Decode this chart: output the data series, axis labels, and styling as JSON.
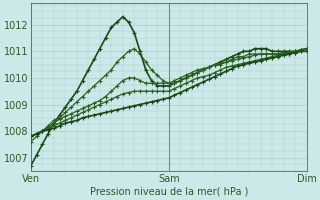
{
  "title": "Pression niveau de la mer( hPa )",
  "bg_color": "#cce8e8",
  "grid_color": "#aacccc",
  "text_color": "#2d5a27",
  "ylim": [
    1006.5,
    1012.8
  ],
  "yticks": [
    1007,
    1008,
    1009,
    1010,
    1011,
    1012
  ],
  "xtick_labels": [
    "Ven",
    "Sam",
    "Dim"
  ],
  "xtick_positions": [
    0,
    48,
    96
  ],
  "x_total": 96,
  "series": [
    {
      "x": [
        0,
        2,
        4,
        6,
        8,
        10,
        12,
        14,
        16,
        18,
        20,
        22,
        24,
        26,
        28,
        30,
        32,
        34,
        36,
        38,
        40,
        42,
        44,
        46,
        48,
        50,
        52,
        54,
        56,
        58,
        60,
        62,
        64,
        66,
        68,
        70,
        72,
        74,
        76,
        78,
        80,
        82,
        84,
        86,
        88,
        90,
        92,
        94,
        96
      ],
      "y": [
        1006.7,
        1007.1,
        1007.5,
        1007.9,
        1008.3,
        1008.6,
        1008.9,
        1009.2,
        1009.5,
        1009.9,
        1010.3,
        1010.7,
        1011.1,
        1011.5,
        1011.9,
        1012.1,
        1012.3,
        1012.1,
        1011.7,
        1011.0,
        1010.3,
        1009.9,
        1009.7,
        1009.7,
        1009.7,
        1009.8,
        1009.9,
        1010.0,
        1010.1,
        1010.2,
        1010.3,
        1010.4,
        1010.5,
        1010.6,
        1010.7,
        1010.8,
        1010.9,
        1011.0,
        1011.0,
        1011.1,
        1011.1,
        1011.1,
        1011.0,
        1011.0,
        1011.0,
        1011.0,
        1011.0,
        1011.05,
        1011.1
      ],
      "color": "#1a4a14",
      "lw": 1.2
    },
    {
      "x": [
        0,
        2,
        4,
        6,
        8,
        10,
        12,
        14,
        16,
        18,
        20,
        22,
        24,
        26,
        28,
        30,
        32,
        34,
        36,
        38,
        40,
        42,
        44,
        46,
        48,
        50,
        52,
        54,
        56,
        58,
        60,
        62,
        64,
        66,
        68,
        70,
        72,
        74,
        76,
        78,
        80,
        82,
        84,
        86,
        88,
        90,
        92,
        94,
        96
      ],
      "y": [
        1007.6,
        1007.8,
        1008.0,
        1008.2,
        1008.4,
        1008.5,
        1008.7,
        1008.9,
        1009.1,
        1009.3,
        1009.5,
        1009.7,
        1009.9,
        1010.1,
        1010.3,
        1010.6,
        1010.8,
        1011.0,
        1011.1,
        1010.9,
        1010.6,
        1010.3,
        1010.1,
        1009.9,
        1009.8,
        1009.8,
        1009.9,
        1010.0,
        1010.1,
        1010.2,
        1010.3,
        1010.4,
        1010.5,
        1010.5,
        1010.6,
        1010.7,
        1010.8,
        1010.8,
        1010.9,
        1010.9,
        1010.9,
        1010.9,
        1010.9,
        1010.9,
        1010.95,
        1010.95,
        1011.0,
        1011.05,
        1011.1
      ],
      "color": "#2a6020",
      "lw": 0.9
    },
    {
      "x": [
        0,
        2,
        4,
        6,
        8,
        10,
        12,
        14,
        16,
        18,
        20,
        22,
        24,
        26,
        28,
        30,
        32,
        34,
        36,
        38,
        40,
        42,
        44,
        46,
        48,
        50,
        52,
        54,
        56,
        58,
        60,
        62,
        64,
        66,
        68,
        70,
        72,
        74,
        76,
        78,
        80,
        82,
        84,
        86,
        88,
        90,
        92,
        94,
        96
      ],
      "y": [
        1007.8,
        1007.9,
        1008.0,
        1008.15,
        1008.3,
        1008.45,
        1008.55,
        1008.65,
        1008.75,
        1008.85,
        1008.95,
        1009.05,
        1009.15,
        1009.3,
        1009.5,
        1009.7,
        1009.9,
        1010.0,
        1010.0,
        1009.9,
        1009.8,
        1009.8,
        1009.8,
        1009.8,
        1009.8,
        1009.9,
        1010.0,
        1010.1,
        1010.2,
        1010.3,
        1010.35,
        1010.4,
        1010.5,
        1010.55,
        1010.6,
        1010.65,
        1010.7,
        1010.75,
        1010.8,
        1010.85,
        1010.9,
        1010.9,
        1010.9,
        1010.9,
        1010.95,
        1010.95,
        1011.0,
        1011.05,
        1011.1
      ],
      "color": "#2a6020",
      "lw": 0.9
    },
    {
      "x": [
        0,
        2,
        4,
        6,
        8,
        10,
        12,
        14,
        16,
        18,
        20,
        22,
        24,
        26,
        28,
        30,
        32,
        34,
        36,
        38,
        40,
        42,
        44,
        46,
        48,
        50,
        52,
        54,
        56,
        58,
        60,
        62,
        64,
        66,
        68,
        70,
        72,
        74,
        76,
        78,
        80,
        82,
        84,
        86,
        88,
        90,
        92,
        94,
        96
      ],
      "y": [
        1007.8,
        1007.9,
        1008.0,
        1008.1,
        1008.2,
        1008.3,
        1008.4,
        1008.5,
        1008.6,
        1008.7,
        1008.8,
        1008.9,
        1009.0,
        1009.1,
        1009.2,
        1009.3,
        1009.4,
        1009.45,
        1009.5,
        1009.5,
        1009.5,
        1009.5,
        1009.5,
        1009.5,
        1009.5,
        1009.6,
        1009.7,
        1009.8,
        1009.9,
        1010.0,
        1010.05,
        1010.1,
        1010.2,
        1010.3,
        1010.4,
        1010.45,
        1010.5,
        1010.55,
        1010.6,
        1010.65,
        1010.7,
        1010.75,
        1010.8,
        1010.85,
        1010.9,
        1010.9,
        1010.95,
        1011.0,
        1011.0
      ],
      "color": "#2a6020",
      "lw": 0.9
    },
    {
      "x": [
        0,
        2,
        4,
        6,
        8,
        10,
        12,
        14,
        16,
        18,
        20,
        22,
        24,
        26,
        28,
        30,
        32,
        34,
        36,
        38,
        40,
        42,
        44,
        46,
        48,
        50,
        52,
        54,
        56,
        58,
        60,
        62,
        64,
        66,
        68,
        70,
        72,
        74,
        76,
        78,
        80,
        82,
        84,
        86,
        88,
        90,
        92,
        94,
        96
      ],
      "y": [
        1007.8,
        1007.9,
        1008.0,
        1008.05,
        1008.1,
        1008.2,
        1008.3,
        1008.35,
        1008.4,
        1008.5,
        1008.55,
        1008.6,
        1008.65,
        1008.7,
        1008.75,
        1008.8,
        1008.85,
        1008.9,
        1008.95,
        1009.0,
        1009.05,
        1009.1,
        1009.15,
        1009.2,
        1009.25,
        1009.35,
        1009.45,
        1009.55,
        1009.65,
        1009.75,
        1009.85,
        1009.95,
        1010.05,
        1010.15,
        1010.25,
        1010.35,
        1010.45,
        1010.5,
        1010.55,
        1010.6,
        1010.65,
        1010.7,
        1010.75,
        1010.8,
        1010.85,
        1010.9,
        1010.95,
        1011.0,
        1011.0
      ],
      "color": "#1a4a14",
      "lw": 1.2
    }
  ],
  "marker": "+",
  "markersize": 3,
  "markeredgewidth": 0.8
}
